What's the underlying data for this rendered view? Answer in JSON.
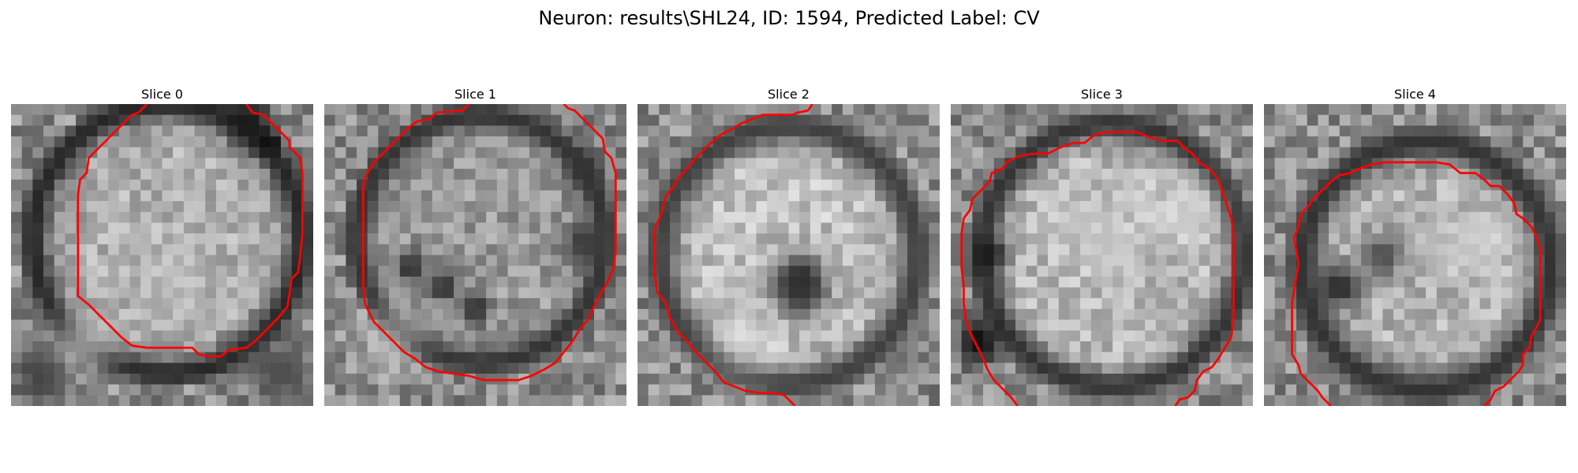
{
  "figure": {
    "title": "Neuron: results\\SHL24, ID: 1594, Predicted Label: CV",
    "contour_color": "#ff0000",
    "image_colormap": "gray",
    "grid_size": 28
  },
  "panels": [
    {
      "title": "Slice 0",
      "image_icon": "em-grayscale-slice-image",
      "contour_icon": "red-outline-contour"
    },
    {
      "title": "Slice 1",
      "image_icon": "em-grayscale-slice-image",
      "contour_icon": "red-outline-contour"
    },
    {
      "title": "Slice 2",
      "image_icon": "em-grayscale-slice-image",
      "contour_icon": "red-outline-contour"
    },
    {
      "title": "Slice 3",
      "image_icon": "em-grayscale-slice-image",
      "contour_icon": "red-outline-contour"
    },
    {
      "title": "Slice 4",
      "image_icon": "em-grayscale-slice-image",
      "contour_icon": "red-outline-contour"
    }
  ]
}
